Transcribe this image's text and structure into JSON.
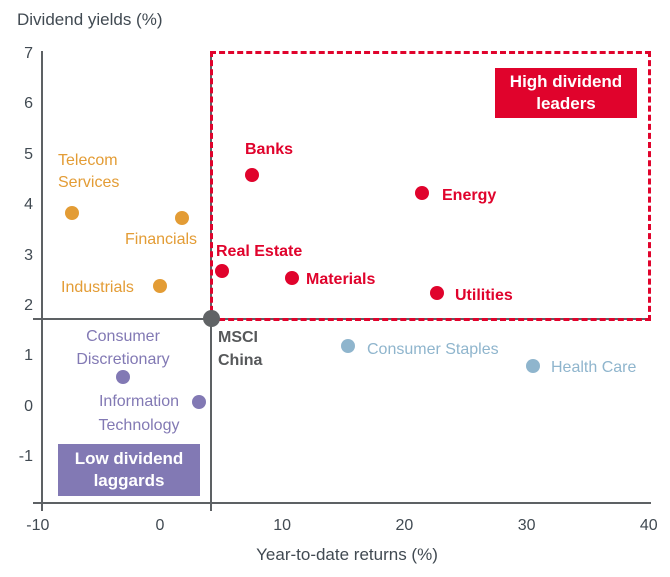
{
  "chart_data": {
    "type": "scatter",
    "title": "Dividend yields (%)",
    "xlabel": "Year-to-date returns (%)",
    "ylabel": "Dividend yields (%)",
    "xlim": [
      -10,
      40
    ],
    "ylim": [
      -1.9,
      7.05
    ],
    "x_ticks": [
      "-10",
      "0",
      "10",
      "20",
      "30",
      "40"
    ],
    "y_ticks": [
      "7",
      "6",
      "5",
      "4",
      "3",
      "2",
      "1",
      "0",
      "-1"
    ],
    "grid": false,
    "colors": {
      "high_yield_red": "#e0032c",
      "amber": "#e39c35",
      "low_yield_purple": "#8279b4",
      "defensive_blue": "#8fb5cd",
      "benchmark_gray": "#606365",
      "axis_gray": "#5d6164",
      "text_gray": "#414a52"
    },
    "points": [
      {
        "id": "telecom-services",
        "label": "Telecom Services",
        "x": -7.2,
        "y": 3.85,
        "group": "amber"
      },
      {
        "id": "financials",
        "label": "Financials",
        "x": 1.8,
        "y": 3.75,
        "group": "amber"
      },
      {
        "id": "industrials",
        "label": "Industrials",
        "x": 0.0,
        "y": 2.4,
        "group": "amber"
      },
      {
        "id": "banks",
        "label": "Banks",
        "x": 7.5,
        "y": 4.6,
        "group": "high_yield_red"
      },
      {
        "id": "real-estate",
        "label": "Real Estate",
        "x": 5.1,
        "y": 2.7,
        "group": "high_yield_red"
      },
      {
        "id": "materials",
        "label": "Materials",
        "x": 10.8,
        "y": 2.55,
        "group": "high_yield_red"
      },
      {
        "id": "energy",
        "label": "Energy",
        "x": 21.4,
        "y": 4.25,
        "group": "high_yield_red"
      },
      {
        "id": "utilities",
        "label": "Utilities",
        "x": 22.7,
        "y": 2.25,
        "group": "high_yield_red"
      },
      {
        "id": "msci-china",
        "label": "MSCI China",
        "x": 4.2,
        "y": 1.75,
        "group": "benchmark_gray"
      },
      {
        "id": "consumer-staples",
        "label": "Consumer Staples",
        "x": 15.4,
        "y": 1.2,
        "group": "defensive_blue"
      },
      {
        "id": "health-care",
        "label": "Health Care",
        "x": 30.5,
        "y": 0.8,
        "group": "defensive_blue"
      },
      {
        "id": "consumer-discretionary",
        "label": "Consumer Discretionary",
        "x": -3.0,
        "y": 0.6,
        "group": "low_yield_purple"
      },
      {
        "id": "information-technology",
        "label": "Information Technology",
        "x": 3.2,
        "y": 0.1,
        "group": "low_yield_purple"
      }
    ],
    "leaders_region": {
      "style": "dashed",
      "color": "#e0032c",
      "x_range": [
        4.2,
        40
      ],
      "y_range": [
        1.75,
        7
      ]
    },
    "crosshair": {
      "through": "msci-china",
      "x": 4.2,
      "y": 1.75
    },
    "callouts": [
      {
        "id": "high-dividend-leaders",
        "text": "High dividend leaders",
        "bg": "#e0032c"
      },
      {
        "id": "low-dividend-laggards",
        "text": "Low dividend laggards",
        "bg": "#8279b4"
      }
    ]
  }
}
